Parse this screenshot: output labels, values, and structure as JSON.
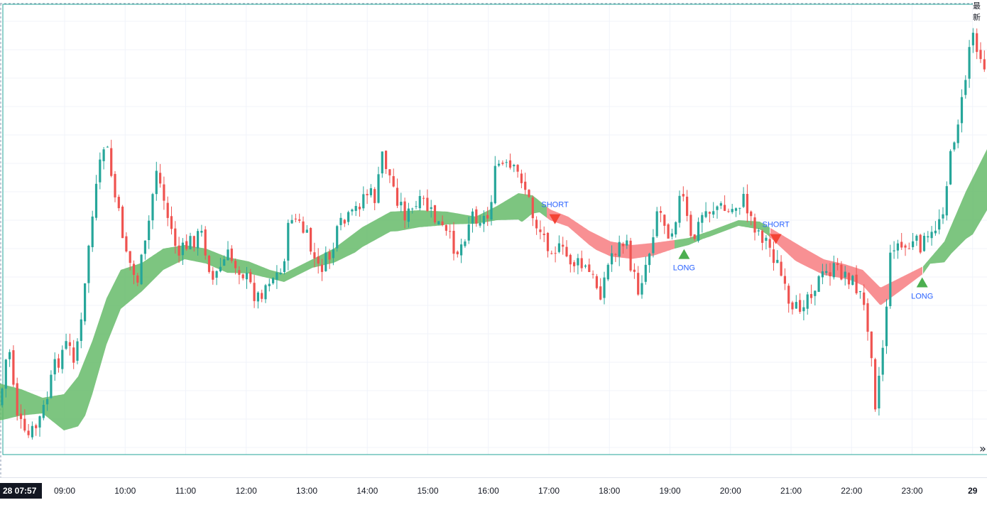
{
  "corner_label": "最新",
  "current_time_badge": "28  07:57",
  "scroll_icon": "double-chevron-right-icon",
  "colors": {
    "up": "#26a69a",
    "down": "#ef5350",
    "band_up": "#66bb6a",
    "band_down": "#f77c80",
    "frame": "#26a69a",
    "grid": "#f0f3fa",
    "signal_text": "#2962ff",
    "long_marker": "#4caf50",
    "short_marker": "#f44336"
  },
  "chart_data": {
    "type": "candlestick",
    "x_ticks": [
      "09:00",
      "10:00",
      "11:00",
      "12:00",
      "13:00",
      "14:00",
      "15:00",
      "16:00",
      "17:00",
      "18:00",
      "19:00",
      "20:00",
      "21:00",
      "22:00",
      "23:00",
      "29"
    ],
    "grid": true,
    "signals": [
      {
        "label": "SHORT",
        "direction": "down",
        "time": "17:06"
      },
      {
        "label": "LONG",
        "direction": "up",
        "time": "19:14"
      },
      {
        "label": "SHORT",
        "direction": "down",
        "time": "20:45"
      },
      {
        "label": "LONG",
        "direction": "up",
        "time": "23:10"
      }
    ],
    "anchors": {
      "close": [
        [
          0,
          570
        ],
        [
          12,
          480
        ],
        [
          24,
          580
        ],
        [
          36,
          620
        ],
        [
          52,
          600
        ],
        [
          64,
          570
        ],
        [
          76,
          520
        ],
        [
          92,
          485
        ],
        [
          104,
          500
        ],
        [
          116,
          450
        ],
        [
          124,
          350
        ],
        [
          136,
          265
        ],
        [
          148,
          195
        ],
        [
          164,
          290
        ],
        [
          180,
          360
        ],
        [
          192,
          400
        ],
        [
          206,
          340
        ],
        [
          220,
          235
        ],
        [
          236,
          305
        ],
        [
          252,
          360
        ],
        [
          268,
          340
        ],
        [
          284,
          330
        ],
        [
          300,
          395
        ],
        [
          320,
          360
        ],
        [
          340,
          380
        ],
        [
          362,
          420
        ],
        [
          380,
          390
        ],
        [
          396,
          385
        ],
        [
          410,
          300
        ],
        [
          430,
          330
        ],
        [
          448,
          380
        ],
        [
          466,
          360
        ],
        [
          478,
          320
        ],
        [
          496,
          305
        ],
        [
          514,
          270
        ],
        [
          530,
          280
        ],
        [
          538,
          215
        ],
        [
          556,
          270
        ],
        [
          572,
          305
        ],
        [
          596,
          285
        ],
        [
          620,
          320
        ],
        [
          646,
          355
        ],
        [
          664,
          300
        ],
        [
          686,
          310
        ],
        [
          700,
          230
        ],
        [
          718,
          240
        ],
        [
          736,
          250
        ],
        [
          752,
          310
        ],
        [
          770,
          340
        ],
        [
          790,
          355
        ],
        [
          808,
          370
        ],
        [
          826,
          380
        ],
        [
          846,
          410
        ],
        [
          862,
          355
        ],
        [
          880,
          340
        ],
        [
          898,
          410
        ],
        [
          914,
          355
        ],
        [
          926,
          290
        ],
        [
          944,
          330
        ],
        [
          960,
          270
        ],
        [
          974,
          345
        ],
        [
          990,
          300
        ],
        [
          1010,
          290
        ],
        [
          1026,
          300
        ],
        [
          1046,
          280
        ],
        [
          1064,
          320
        ],
        [
          1080,
          340
        ],
        [
          1098,
          380
        ],
        [
          1114,
          450
        ],
        [
          1132,
          420
        ],
        [
          1148,
          400
        ],
        [
          1170,
          380
        ],
        [
          1192,
          385
        ],
        [
          1210,
          410
        ],
        [
          1226,
          470
        ],
        [
          1232,
          570
        ],
        [
          1242,
          500
        ],
        [
          1256,
          340
        ],
        [
          1272,
          350
        ],
        [
          1288,
          345
        ],
        [
          1310,
          340
        ],
        [
          1328,
          290
        ],
        [
          1344,
          190
        ],
        [
          1356,
          140
        ],
        [
          1368,
          40
        ],
        [
          1390,
          100
        ]
      ],
      "band_top": [
        [
          0,
          540
        ],
        [
          30,
          548
        ],
        [
          60,
          560
        ],
        [
          90,
          555
        ],
        [
          110,
          530
        ],
        [
          130,
          480
        ],
        [
          150,
          420
        ],
        [
          170,
          380
        ],
        [
          200,
          370
        ],
        [
          230,
          350
        ],
        [
          260,
          345
        ],
        [
          290,
          350
        ],
        [
          320,
          362
        ],
        [
          350,
          368
        ],
        [
          380,
          380
        ],
        [
          400,
          385
        ],
        [
          430,
          370
        ],
        [
          470,
          350
        ],
        [
          510,
          320
        ],
        [
          550,
          298
        ],
        [
          590,
          296
        ],
        [
          630,
          298
        ],
        [
          670,
          305
        ],
        [
          700,
          290
        ],
        [
          730,
          272
        ],
        [
          750,
          275
        ],
        [
          775,
          295
        ],
        [
          800,
          305
        ],
        [
          830,
          325
        ],
        [
          860,
          340
        ],
        [
          890,
          345
        ],
        [
          920,
          342
        ],
        [
          950,
          338
        ],
        [
          970,
          335
        ],
        [
          1000,
          325
        ],
        [
          1040,
          310
        ],
        [
          1070,
          312
        ],
        [
          1100,
          330
        ],
        [
          1130,
          348
        ],
        [
          1160,
          365
        ],
        [
          1190,
          372
        ],
        [
          1215,
          380
        ],
        [
          1240,
          405
        ],
        [
          1270,
          390
        ],
        [
          1300,
          375
        ],
        [
          1330,
          340
        ],
        [
          1360,
          270
        ],
        [
          1390,
          210
        ]
      ],
      "band_width": [
        [
          0,
          52
        ],
        [
          60,
          22
        ],
        [
          120,
          80
        ],
        [
          150,
          65
        ],
        [
          200,
          40
        ],
        [
          260,
          20
        ],
        [
          320,
          22
        ],
        [
          380,
          12
        ],
        [
          440,
          12
        ],
        [
          500,
          28
        ],
        [
          560,
          28
        ],
        [
          620,
          20
        ],
        [
          670,
          10
        ],
        [
          700,
          20
        ],
        [
          735,
          40
        ],
        [
          760,
          16
        ],
        [
          800,
          14
        ],
        [
          840,
          22
        ],
        [
          880,
          20
        ],
        [
          920,
          18
        ],
        [
          950,
          12
        ],
        [
          990,
          8
        ],
        [
          1040,
          8
        ],
        [
          1080,
          12
        ],
        [
          1120,
          25
        ],
        [
          1160,
          22
        ],
        [
          1200,
          20
        ],
        [
          1240,
          25
        ],
        [
          1270,
          18
        ],
        [
          1310,
          8
        ],
        [
          1340,
          40
        ],
        [
          1370,
          80
        ],
        [
          1390,
          86
        ]
      ],
      "band_colors": [
        [
          0,
          "up"
        ],
        [
          770,
          "down"
        ],
        [
          950,
          "up"
        ],
        [
          1085,
          "down"
        ],
        [
          1300,
          "up"
        ]
      ]
    }
  }
}
